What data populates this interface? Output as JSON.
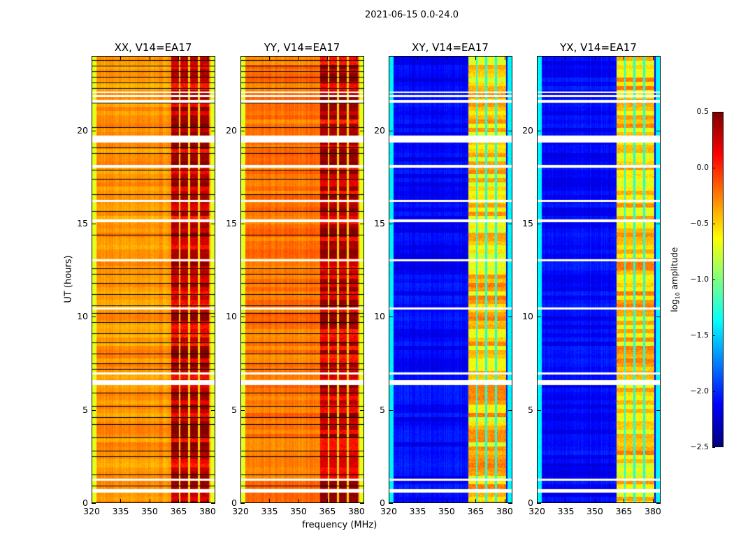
{
  "chart_data": {
    "type": "heatmap",
    "title": "2021-06-15 0.0-24.0",
    "xlabel": "frequency (MHz)",
    "ylabel": "UT (hours)",
    "xlim": [
      320,
      384
    ],
    "ylim": [
      0,
      24
    ],
    "xticks": [
      "320",
      "335",
      "350",
      "365",
      "380"
    ],
    "xtick_values": [
      320,
      335,
      350,
      365,
      380
    ],
    "yticks": [
      "0",
      "5",
      "10",
      "15",
      "20"
    ],
    "ytick_values": [
      0,
      5,
      10,
      15,
      20
    ],
    "colormap": "jet",
    "colorbar": {
      "label": "log10 amplitude",
      "label_main": "log",
      "label_sub": "10",
      "label_rest": " amplitude",
      "range": [
        -2.5,
        0.5
      ],
      "ticks": [
        "0.5",
        "0.0",
        "−0.5",
        "−1.0",
        "−1.5",
        "−2.0",
        "−2.5"
      ],
      "tick_values": [
        0.5,
        0.0,
        -0.5,
        -1.0,
        -1.5,
        -2.0,
        -2.5
      ]
    },
    "panels": [
      {
        "title": "XX, V14=EA17",
        "base_level": -0.4,
        "band_level": 0.3,
        "edge_level": -0.7,
        "black_rows": true
      },
      {
        "title": "YY, V14=EA17",
        "base_level": -0.3,
        "band_level": 0.3,
        "edge_level": -0.7,
        "black_rows": true
      },
      {
        "title": "XY, V14=EA17",
        "base_level": -2.2,
        "band_level": -0.5,
        "edge_level": -1.4,
        "black_rows": false
      },
      {
        "title": "YX, V14=EA17",
        "base_level": -2.2,
        "band_level": -0.5,
        "edge_level": -1.4,
        "black_rows": false
      }
    ],
    "band_mhz": [
      361,
      381
    ],
    "band_gaps_mhz": [
      365.5,
      370.5,
      375.5
    ],
    "flagged_hours": [
      [
        0.55,
        0.75
      ],
      [
        1.2,
        1.3
      ],
      [
        6.35,
        6.6
      ],
      [
        6.9,
        7.0
      ],
      [
        10.4,
        10.5
      ],
      [
        13.0,
        13.1
      ],
      [
        15.1,
        15.25
      ],
      [
        16.2,
        16.3
      ],
      [
        18.05,
        18.2
      ],
      [
        19.4,
        19.75
      ],
      [
        21.55,
        21.7
      ],
      [
        21.85,
        21.95
      ],
      [
        22.05,
        22.15
      ]
    ],
    "black_row_hours": [
      0.9,
      1.5,
      2.5,
      2.8,
      3.5,
      4.2,
      4.6,
      5.2,
      5.9,
      7.2,
      7.5,
      8.0,
      8.6,
      9.1,
      9.7,
      10.2,
      10.6,
      11.2,
      11.8,
      12.3,
      12.6,
      14.4,
      15.7,
      16.6,
      17.4,
      17.9,
      18.8,
      19.1,
      19.4,
      20.2,
      21.5,
      22.3,
      22.6,
      22.9,
      23.2,
      23.5,
      23.8
    ]
  }
}
